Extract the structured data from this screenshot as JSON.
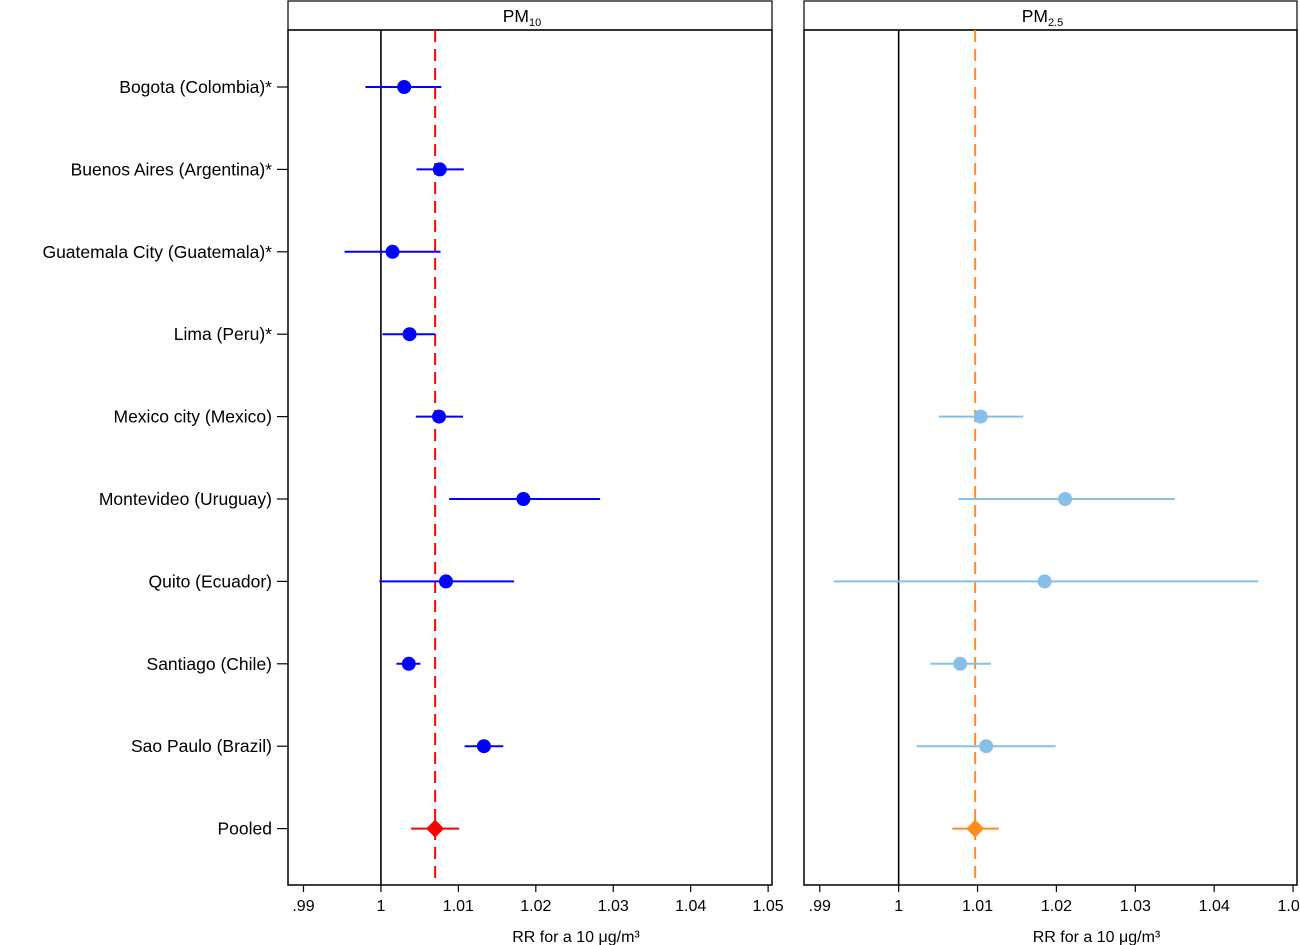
{
  "chart_data": {
    "type": "forest",
    "categories": [
      "Bogota (Colombia)*",
      "Buenos Aires (Argentina)*",
      "Guatemala City (Guatemala)*",
      "Lima (Peru)*",
      "Mexico city (Mexico)",
      "Montevideo (Uruguay)",
      "Quito (Ecuador)",
      "Santiago (Chile)",
      "Sao Paulo (Brazil)",
      "Pooled"
    ],
    "x_ticks": [
      0.99,
      1,
      1.01,
      1.02,
      1.03,
      1.04,
      1.05
    ],
    "x_tick_labels": [
      ".99",
      "1",
      "1.01",
      "1.02",
      "1.03",
      "1.04",
      "1.05"
    ],
    "xlim": [
      0.988,
      1.0505
    ],
    "xlabel": "RR for a 10 μg/m³",
    "reference_line": 1,
    "panels": [
      {
        "title_main": "PM",
        "title_sub": "10",
        "point_color": "#0000ff",
        "pooled_color": "#ff0000",
        "pooled_line_color": "#ff0000",
        "pooled_value": 1.007,
        "points": [
          {
            "category": "Bogota (Colombia)*",
            "rr": 1.003,
            "lower": 0.998,
            "upper": 1.0078
          },
          {
            "category": "Buenos Aires (Argentina)*",
            "rr": 1.0076,
            "lower": 1.0046,
            "upper": 1.0107
          },
          {
            "category": "Guatemala City (Guatemala)*",
            "rr": 1.0015,
            "lower": 0.9953,
            "upper": 1.0077
          },
          {
            "category": "Lima (Peru)*",
            "rr": 1.0037,
            "lower": 1.0002,
            "upper": 1.007
          },
          {
            "category": "Mexico city (Mexico)",
            "rr": 1.0075,
            "lower": 1.0045,
            "upper": 1.0106
          },
          {
            "category": "Montevideo (Uruguay)",
            "rr": 1.0184,
            "lower": 1.0088,
            "upper": 1.0283
          },
          {
            "category": "Quito (Ecuador)",
            "rr": 1.0084,
            "lower": 0.9998,
            "upper": 1.0172
          },
          {
            "category": "Santiago (Chile)",
            "rr": 1.0036,
            "lower": 1.002,
            "upper": 1.0051
          },
          {
            "category": "Sao Paulo (Brazil)",
            "rr": 1.0133,
            "lower": 1.0108,
            "upper": 1.0158
          },
          {
            "category": "Pooled",
            "rr": 1.007,
            "lower": 1.0039,
            "upper": 1.0101,
            "pooled": true
          }
        ]
      },
      {
        "title_main": "PM",
        "title_sub": "2.5",
        "point_color": "#87bfe8",
        "pooled_color": "#ff8c1a",
        "pooled_line_color": "#ff8c1a",
        "pooled_value": 1.0097,
        "points": [
          {
            "category": "Mexico city (Mexico)",
            "rr": 1.0104,
            "lower": 1.0051,
            "upper": 1.0158
          },
          {
            "category": "Montevideo (Uruguay)",
            "rr": 1.0211,
            "lower": 1.0076,
            "upper": 1.035
          },
          {
            "category": "Quito (Ecuador)",
            "rr": 1.0185,
            "lower": 0.9918,
            "upper": 1.0456
          },
          {
            "category": "Santiago (Chile)",
            "rr": 1.0078,
            "lower": 1.004,
            "upper": 1.0117
          },
          {
            "category": "Sao Paulo (Brazil)",
            "rr": 1.0111,
            "lower": 1.0023,
            "upper": 1.0199
          },
          {
            "category": "Pooled",
            "rr": 1.0097,
            "lower": 1.0068,
            "upper": 1.0127,
            "pooled": true
          }
        ]
      }
    ]
  }
}
